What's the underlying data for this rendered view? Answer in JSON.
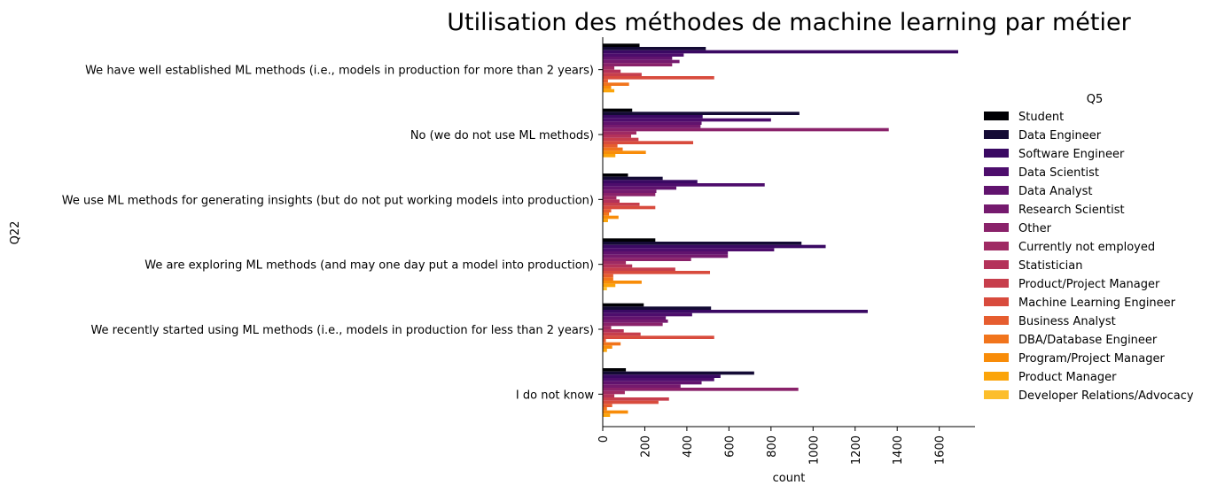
{
  "chart_data": {
    "type": "bar",
    "orientation": "horizontal",
    "title": "Utilisation des méthodes de machine learning par métier",
    "xlabel": "count",
    "ylabel": "Q22",
    "xlim": [
      0,
      1770
    ],
    "xticks": [
      0,
      200,
      400,
      600,
      800,
      1000,
      1200,
      1400,
      1600
    ],
    "legend_title": "Q5",
    "legend_position": "right",
    "categories": [
      "We have well established ML methods (i.e., models in production for more than 2 years)",
      "No (we do not use ML methods)",
      "We use ML methods for generating insights (but do not put working models into production)",
      "We are exploring ML methods (and may one day put a model into production)",
      "We recently started using ML methods (i.e., models in production for less than 2 years)",
      "I do not know"
    ],
    "series": [
      {
        "name": "Student",
        "color": "#000004",
        "values": [
          175,
          140,
          120,
          250,
          195,
          110
        ]
      },
      {
        "name": "Data Engineer",
        "color": "#140b35",
        "values": [
          490,
          935,
          285,
          945,
          515,
          720
        ]
      },
      {
        "name": "Software Engineer",
        "color": "#3a0963",
        "values": [
          1690,
          475,
          450,
          1060,
          1260,
          560
        ]
      },
      {
        "name": "Data Scientist",
        "color": "#4d0d6c",
        "values": [
          385,
          800,
          770,
          815,
          425,
          530
        ]
      },
      {
        "name": "Data Analyst",
        "color": "#61136e",
        "values": [
          330,
          470,
          350,
          595,
          300,
          470
        ]
      },
      {
        "name": "Research Scientist",
        "color": "#751a6e",
        "values": [
          365,
          465,
          255,
          595,
          310,
          370
        ]
      },
      {
        "name": "Other",
        "color": "#8a226a",
        "values": [
          330,
          1360,
          250,
          420,
          285,
          930
        ]
      },
      {
        "name": "Currently not employed",
        "color": "#9f2a63",
        "values": [
          55,
          160,
          65,
          110,
          40,
          105
        ]
      },
      {
        "name": "Statistician",
        "color": "#b4325a",
        "values": [
          85,
          135,
          80,
          140,
          100,
          55
        ]
      },
      {
        "name": "Product/Project Manager",
        "color": "#c73e4c",
        "values": [
          185,
          170,
          175,
          345,
          180,
          315
        ]
      },
      {
        "name": "Machine Learning Engineer",
        "color": "#d84b3d",
        "values": [
          530,
          430,
          250,
          510,
          530,
          265
        ]
      },
      {
        "name": "Business Analyst",
        "color": "#e65d2f",
        "values": [
          25,
          70,
          40,
          50,
          15,
          45
        ]
      },
      {
        "name": "DBA/Database Engineer",
        "color": "#f1741c",
        "values": [
          125,
          95,
          30,
          50,
          85,
          20
        ]
      },
      {
        "name": "Program/Project Manager",
        "color": "#f88c09",
        "values": [
          40,
          205,
          75,
          185,
          45,
          120
        ]
      },
      {
        "name": "Product Manager",
        "color": "#fba40a",
        "values": [
          55,
          60,
          25,
          60,
          20,
          35
        ]
      },
      {
        "name": "Developer Relations/Advocacy",
        "color": "#fcbe2c",
        "values": [
          0,
          0,
          0,
          20,
          0,
          0
        ]
      }
    ]
  }
}
